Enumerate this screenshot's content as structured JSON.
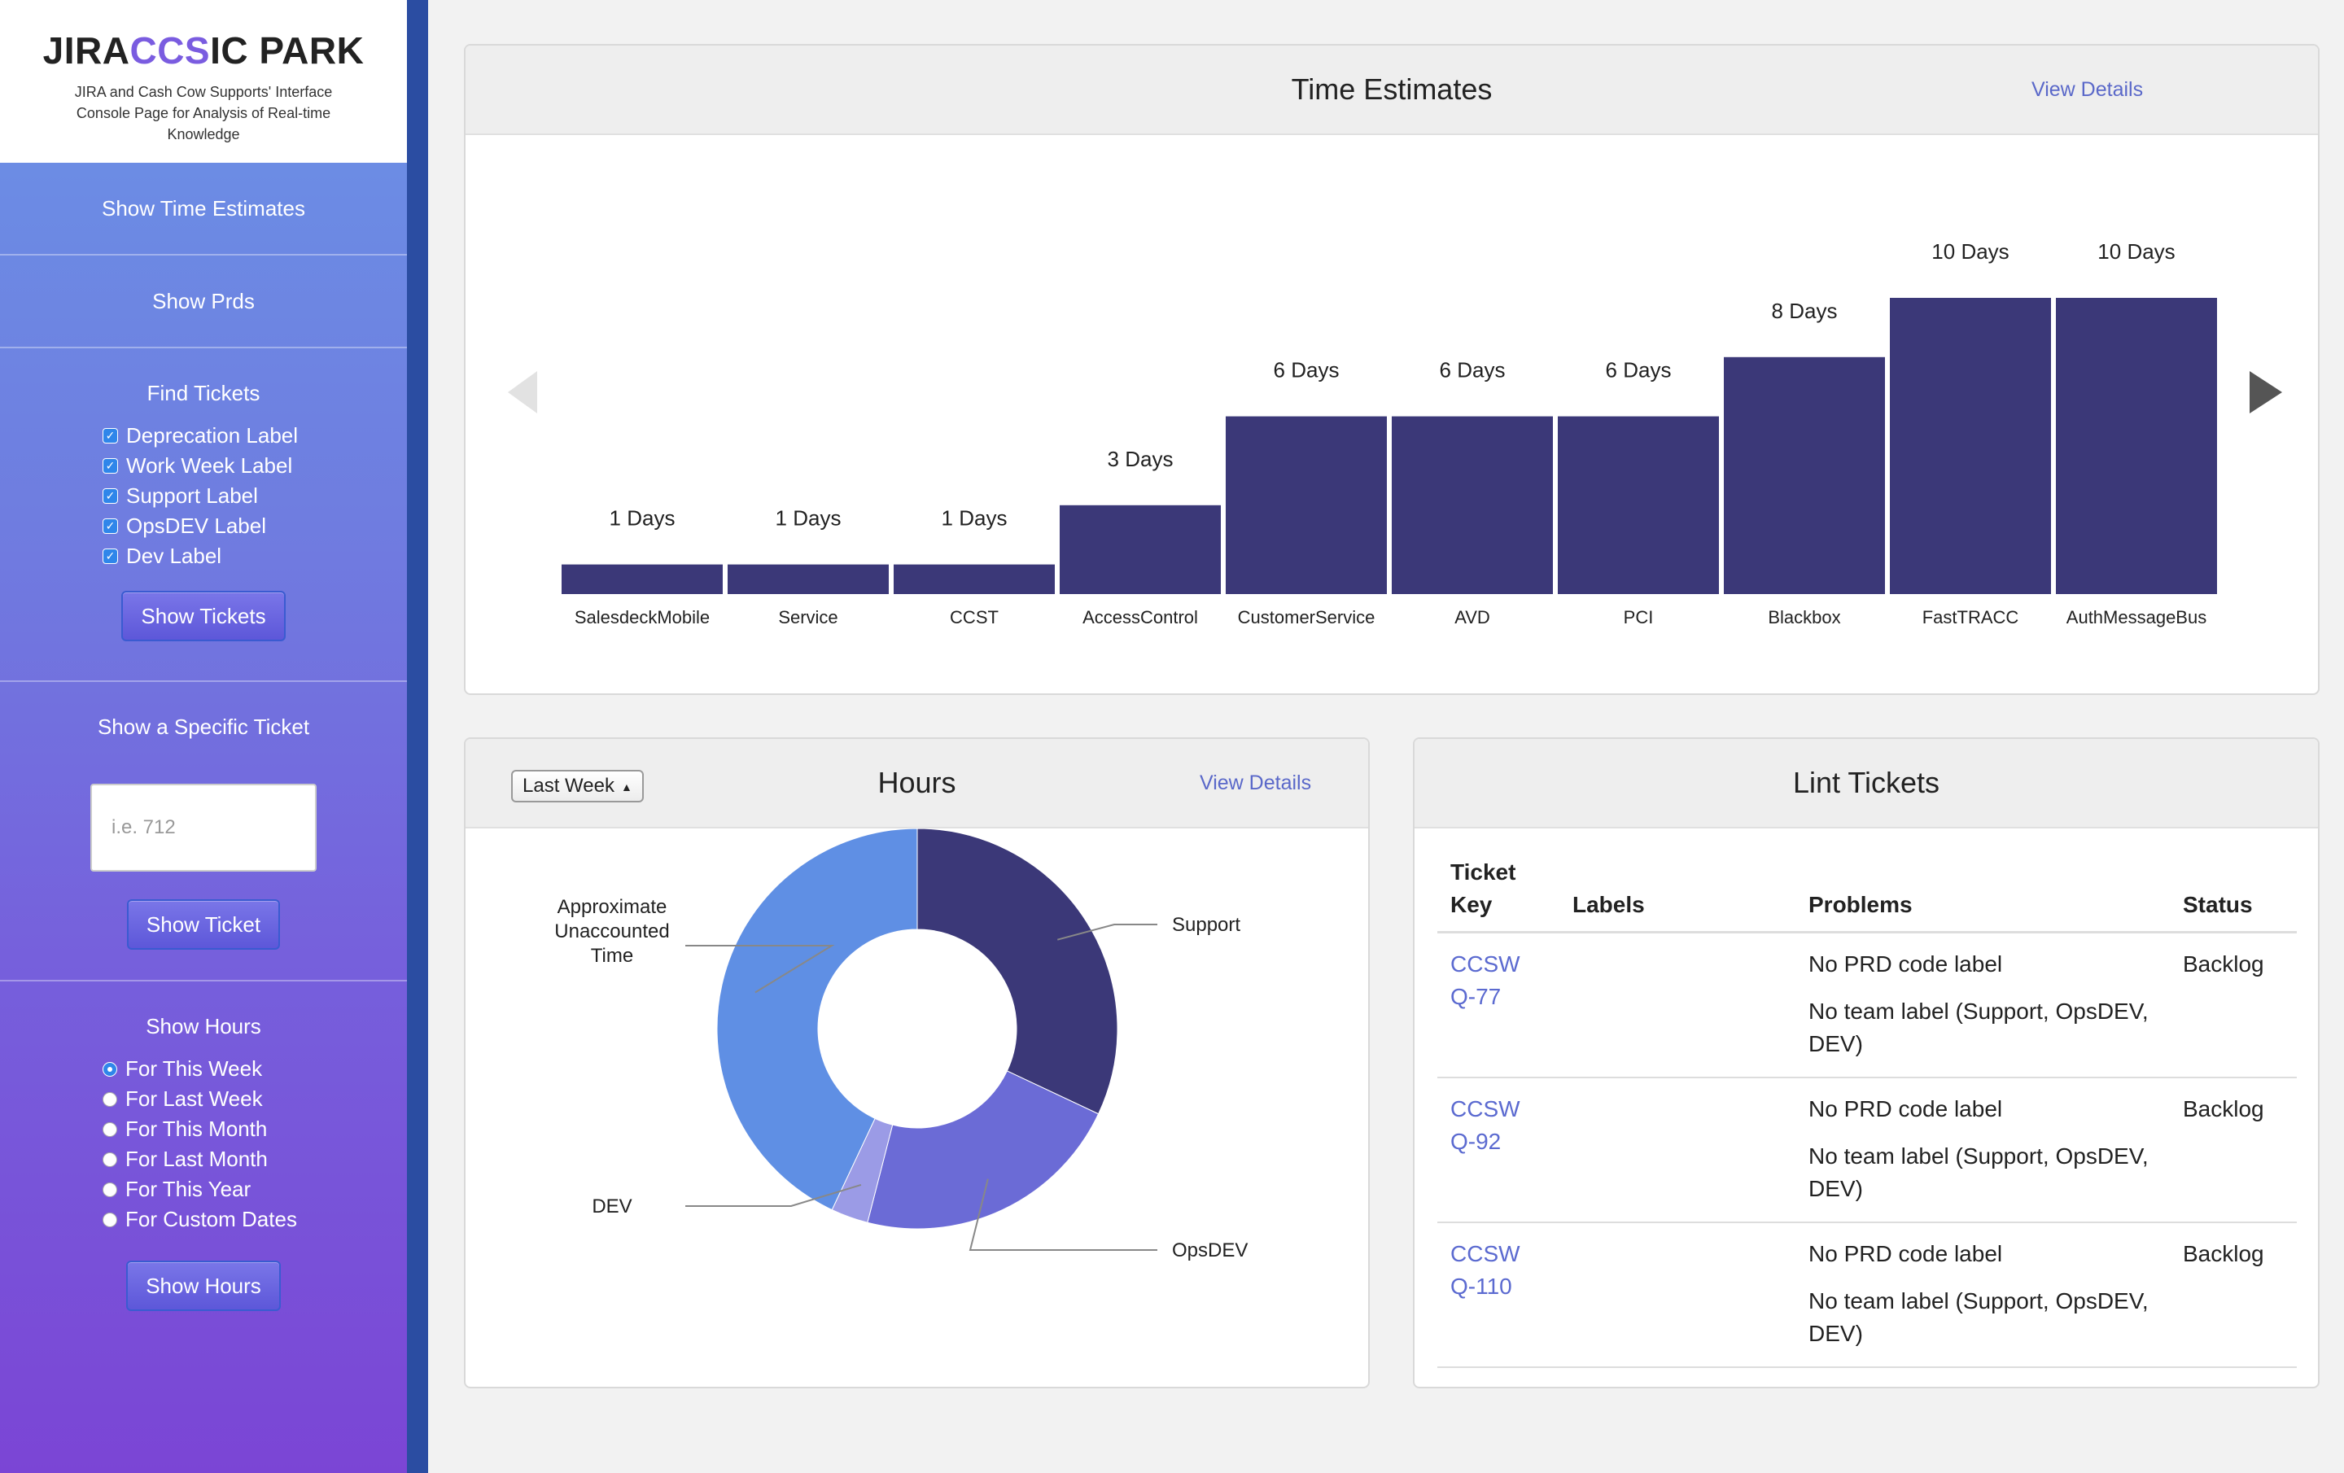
{
  "brand": {
    "title_pre": "JIRA",
    "title_hl": "CCS",
    "title_post": "IC PARK",
    "subtitle": "JIRA and Cash Cow Supports' Interface Console Page for Analysis of Real-time Knowledge"
  },
  "sidebar": {
    "show_time_estimates": "Show Time Estimates",
    "show_prds": "Show Prds",
    "find_tickets": {
      "heading": "Find Tickets",
      "labels": [
        "Deprecation Label",
        "Work Week Label",
        "Support Label",
        "OpsDEV Label",
        "Dev Label"
      ],
      "button": "Show Tickets"
    },
    "specific_ticket": {
      "heading": "Show a Specific Ticket",
      "placeholder": "i.e. 712",
      "button": "Show Ticket"
    },
    "show_hours": {
      "heading": "Show Hours",
      "options": [
        "For This Week",
        "For Last Week",
        "For This Month",
        "For Last Month",
        "For This Year",
        "For Custom Dates"
      ],
      "selected_index": 0,
      "button": "Show Hours"
    }
  },
  "time_estimates": {
    "title": "Time Estimates",
    "view_details": "View Details"
  },
  "hours": {
    "title": "Hours",
    "view_details": "View Details",
    "period": "Last Week"
  },
  "lint": {
    "title": "Lint Tickets",
    "columns": [
      "Ticket Key",
      "Labels",
      "Problems",
      "Status"
    ],
    "rows": [
      {
        "key": "CCSWQ-77",
        "labels": "",
        "problems": [
          "No PRD code label",
          "No team label (Support, OpsDEV, DEV)"
        ],
        "status": "Backlog"
      },
      {
        "key": "CCSWQ-92",
        "labels": "",
        "problems": [
          "No PRD code label",
          "No team label (Support, OpsDEV, DEV)"
        ],
        "status": "Backlog"
      },
      {
        "key": "CCSWQ-110",
        "labels": "",
        "problems": [
          "No PRD code label",
          "No team label (Support, OpsDEV, DEV)"
        ],
        "status": "Backlog"
      }
    ]
  },
  "colors": {
    "bar": "#3b3878",
    "support": "#3b3878",
    "opsdev": "#6b6bd6",
    "dev": "#9b9be6",
    "unaccounted": "#5f8fe4",
    "link": "#5b6ad0"
  },
  "chart_data": [
    {
      "type": "bar",
      "categories": [
        "SalesdeckMobile",
        "Service",
        "CCST",
        "AccessControl",
        "CustomerService",
        "AVD",
        "PCI",
        "Blackbox",
        "FastTRACC",
        "AuthMessageBus"
      ],
      "values": [
        1,
        1,
        1,
        3,
        6,
        6,
        6,
        8,
        10,
        10
      ],
      "value_suffix": " Days",
      "title": "",
      "ylim": [
        0,
        10
      ],
      "grid": false
    },
    {
      "type": "pie",
      "donut": true,
      "labels": [
        "Support",
        "OpsDEV",
        "DEV",
        "Approximate Unaccounted Time"
      ],
      "values": [
        32,
        22,
        3,
        43
      ]
    }
  ]
}
